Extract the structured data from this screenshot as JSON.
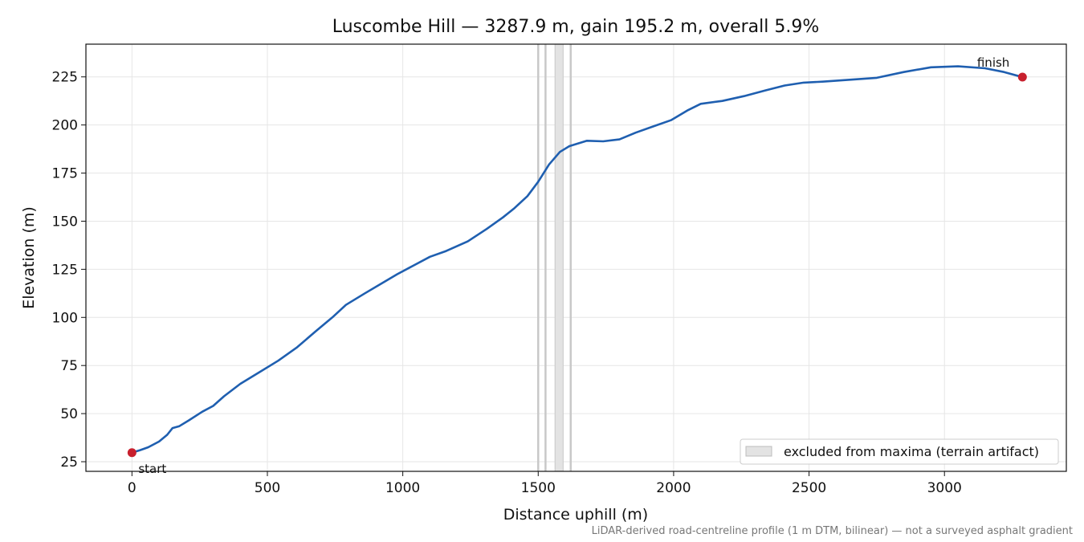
{
  "chart_data": {
    "type": "line",
    "title": "Luscombe Hill — 3287.9 m, gain 195.2 m, overall 5.9%",
    "xlabel": "Distance uphill (m)",
    "ylabel": "Elevation (m)",
    "xlim": [
      -170,
      3450
    ],
    "ylim": [
      20,
      242
    ],
    "x_ticks": [
      0,
      500,
      1000,
      1500,
      2000,
      2500,
      3000
    ],
    "y_ticks": [
      25,
      50,
      75,
      100,
      125,
      150,
      175,
      200,
      225
    ],
    "grid": true,
    "series": [
      {
        "color": "#1f5fb0",
        "points": [
          [
            0,
            29.7
          ],
          [
            30,
            31.0
          ],
          [
            60,
            32.5
          ],
          [
            100,
            35.5
          ],
          [
            130,
            39.0
          ],
          [
            150,
            42.5
          ],
          [
            175,
            43.5
          ],
          [
            210,
            46.5
          ],
          [
            260,
            51.0
          ],
          [
            300,
            54.0
          ],
          [
            340,
            59.0
          ],
          [
            400,
            65.5
          ],
          [
            470,
            71.5
          ],
          [
            540,
            77.5
          ],
          [
            610,
            84.5
          ],
          [
            680,
            93.0
          ],
          [
            740,
            100.0
          ],
          [
            790,
            106.5
          ],
          [
            860,
            112.5
          ],
          [
            920,
            117.5
          ],
          [
            980,
            122.5
          ],
          [
            1040,
            127.0
          ],
          [
            1100,
            131.5
          ],
          [
            1160,
            134.5
          ],
          [
            1240,
            139.5
          ],
          [
            1310,
            146.0
          ],
          [
            1370,
            152.0
          ],
          [
            1410,
            156.5
          ],
          [
            1460,
            163.0
          ],
          [
            1500,
            170.5
          ],
          [
            1540,
            179.5
          ],
          [
            1580,
            186.0
          ],
          [
            1615,
            189.0
          ],
          [
            1680,
            191.8
          ],
          [
            1740,
            191.5
          ],
          [
            1800,
            192.5
          ],
          [
            1860,
            196.0
          ],
          [
            1920,
            199.0
          ],
          [
            1990,
            202.5
          ],
          [
            2050,
            207.5
          ],
          [
            2100,
            211.0
          ],
          [
            2180,
            212.5
          ],
          [
            2260,
            215.0
          ],
          [
            2340,
            218.0
          ],
          [
            2410,
            220.5
          ],
          [
            2480,
            222.0
          ],
          [
            2550,
            222.5
          ],
          [
            2650,
            223.5
          ],
          [
            2750,
            224.5
          ],
          [
            2850,
            227.5
          ],
          [
            2950,
            230.0
          ],
          [
            3050,
            230.5
          ],
          [
            3150,
            229.5
          ],
          [
            3220,
            227.5
          ],
          [
            3287.9,
            224.9
          ]
        ]
      }
    ],
    "markers": [
      {
        "label": "start",
        "x": 0,
        "y": 29.7,
        "color": "#c8202e"
      },
      {
        "label": "finish",
        "x": 3287.9,
        "y": 224.9,
        "color": "#c8202e"
      }
    ],
    "excluded_band": {
      "x0": 1562,
      "x1": 1592,
      "color": "#e3e3e3"
    },
    "excluded_lines": [
      1500,
      1527,
      1620
    ],
    "legend": {
      "position": "lower-right",
      "label": "excluded from maxima (terrain artifact)"
    },
    "footnote": "LiDAR-derived road-centreline profile (1 m DTM, bilinear) — not a surveyed asphalt gradient"
  }
}
